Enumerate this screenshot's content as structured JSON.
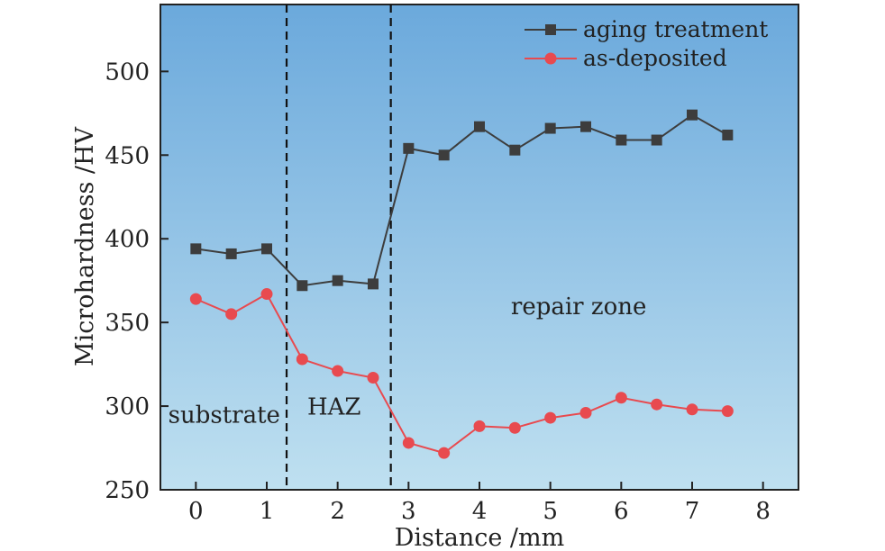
{
  "chart_data": {
    "type": "line",
    "xlabel": "Distance /mm",
    "ylabel": "Microhardness /HV",
    "xlim": [
      -0.5,
      8.5
    ],
    "ylim": [
      250,
      540
    ],
    "xticks": [
      0,
      1,
      2,
      3,
      4,
      5,
      6,
      7,
      8
    ],
    "yticks": [
      250,
      300,
      350,
      400,
      450,
      500
    ],
    "series": [
      {
        "name": "aging treatment",
        "color": "#3d3d3d",
        "marker": "square",
        "x": [
          0,
          0.5,
          1,
          1.5,
          2,
          2.5,
          3,
          3.5,
          4,
          4.5,
          5,
          5.5,
          6,
          6.5,
          7,
          7.5
        ],
        "y": [
          394,
          391,
          394,
          372,
          375,
          373,
          454,
          450,
          467,
          453,
          466,
          467,
          459,
          459,
          474,
          462
        ]
      },
      {
        "name": "as-deposited",
        "color": "#e84a4f",
        "marker": "circle",
        "x": [
          0,
          0.5,
          1,
          1.5,
          2,
          2.5,
          3,
          3.5,
          4,
          4.5,
          5,
          5.5,
          6,
          6.5,
          7,
          7.5
        ],
        "y": [
          364,
          355,
          367,
          328,
          321,
          317,
          278,
          272,
          288,
          287,
          293,
          296,
          305,
          301,
          298,
          297
        ]
      }
    ],
    "vlines": [
      1.28,
      2.75
    ],
    "zones": [
      {
        "label": "substrate",
        "x": 0.4,
        "y": 290
      },
      {
        "label": "HAZ",
        "x": 1.95,
        "y": 295
      },
      {
        "label": "repair zone",
        "x": 5.4,
        "y": 355
      }
    ],
    "legend_position": "top-right",
    "grid": false,
    "background": "gradient-blue"
  }
}
